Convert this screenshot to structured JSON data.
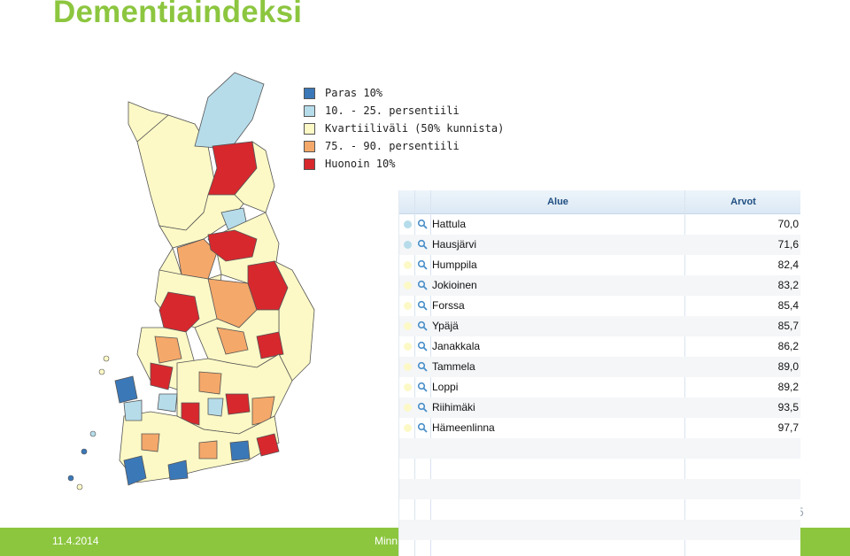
{
  "title": "Dementiaindeksi",
  "legend": [
    {
      "label": "Paras 10%",
      "color": "#3b78b8"
    },
    {
      "label": "10. - 25. persentiili",
      "color": "#b6dcea"
    },
    {
      "label": "Kvartiiliväli (50% kunnista)",
      "color": "#fdf9c6"
    },
    {
      "label": "75. - 90. persentiili",
      "color": "#f4a86a"
    },
    {
      "label": "Huonoin 10%",
      "color": "#d7282e"
    }
  ],
  "table": {
    "header_alue": "Alue",
    "header_arvot": "Arvot",
    "rows": [
      {
        "name": "Hattula",
        "value": "70,0",
        "dot": "#b6dcea"
      },
      {
        "name": "Hausjärvi",
        "value": "71,6",
        "dot": "#b6dcea"
      },
      {
        "name": "Humppila",
        "value": "82,4",
        "dot": "#fdf9c6"
      },
      {
        "name": "Jokioinen",
        "value": "83,2",
        "dot": "#fdf9c6"
      },
      {
        "name": "Forssa",
        "value": "85,4",
        "dot": "#fdf9c6"
      },
      {
        "name": "Ypäjä",
        "value": "85,7",
        "dot": "#fdf9c6"
      },
      {
        "name": "Janakkala",
        "value": "86,2",
        "dot": "#fdf9c6"
      },
      {
        "name": "Tammela",
        "value": "89,0",
        "dot": "#fdf9c6"
      },
      {
        "name": "Loppi",
        "value": "89,2",
        "dot": "#fdf9c6"
      },
      {
        "name": "Riihimäki",
        "value": "93,5",
        "dot": "#fdf9c6"
      },
      {
        "name": "Hämeenlinna",
        "value": "97,7",
        "dot": "#fdf9c6"
      }
    ]
  },
  "footer": {
    "date": "11.4.2014",
    "text": "Minn",
    "page_fragment": "5",
    "color": "#8cc63f"
  },
  "accent": "#8cc63f"
}
